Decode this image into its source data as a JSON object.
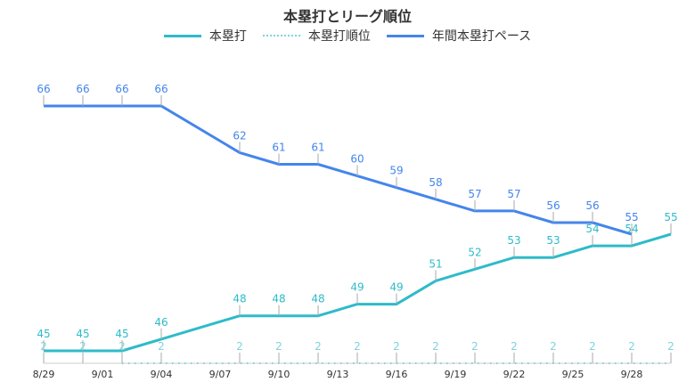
{
  "chart_data": {
    "type": "line",
    "title": "本塁打とリーグ順位",
    "xlabel": "",
    "ylabel": "",
    "grid": false,
    "legend_position": "top-center",
    "x_tick_labels": [
      "8/29",
      "9/01",
      "9/04",
      "9/07",
      "9/10",
      "9/13",
      "9/16",
      "9/19",
      "9/22",
      "9/25",
      "9/28"
    ],
    "x_tick_days": [
      0,
      3,
      6,
      9,
      12,
      15,
      18,
      21,
      24,
      27,
      30
    ],
    "x_days": [
      0,
      2,
      4,
      6,
      10,
      12,
      14,
      16,
      18,
      20,
      22,
      24,
      26,
      28,
      30,
      32
    ],
    "x_dates": [
      "8/29",
      "8/31",
      "9/02",
      "9/04",
      "9/08",
      "9/10",
      "9/12",
      "9/14",
      "9/16",
      "9/18",
      "9/20",
      "9/22",
      "9/24",
      "9/26",
      "9/28",
      "9/30"
    ],
    "ylim": [
      44.5,
      66.5
    ],
    "series": [
      {
        "name": "本塁打",
        "color": "#2ebbc9",
        "style": "solid",
        "values": [
          45,
          45,
          45,
          46,
          48,
          48,
          48,
          49,
          49,
          51,
          52,
          53,
          53,
          54,
          54,
          55
        ]
      },
      {
        "name": "本塁打順位",
        "color": "#7fd3dc",
        "style": "dotted",
        "values": [
          2,
          2,
          2,
          2,
          2,
          2,
          2,
          2,
          2,
          2,
          2,
          2,
          2,
          2,
          2,
          2
        ]
      },
      {
        "name": "年間本塁打ペース",
        "color": "#4485ec",
        "style": "solid",
        "values": [
          66,
          66,
          66,
          66,
          62,
          61,
          61,
          60,
          59,
          58,
          57,
          57,
          56,
          56,
          55,
          null
        ]
      }
    ]
  },
  "legend": {
    "items": [
      {
        "label": "本塁打",
        "color": "#2ebbc9"
      },
      {
        "label": "本塁打順位",
        "color": "#7fd3dc"
      },
      {
        "label": "年間本塁打ペース",
        "color": "#4485ec"
      }
    ]
  }
}
